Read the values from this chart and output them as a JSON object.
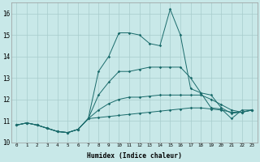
{
  "xlabel": "Humidex (Indice chaleur)",
  "xlim": [
    -0.5,
    23.5
  ],
  "ylim": [
    10,
    16.5
  ],
  "yticks": [
    10,
    11,
    12,
    13,
    14,
    15,
    16
  ],
  "bg_color": "#c8e8e8",
  "grid_color": "#a8cccc",
  "line_color": "#1a6b6b",
  "series": [
    [
      10.8,
      10.9,
      10.8,
      10.65,
      10.5,
      10.45,
      10.6,
      11.1,
      11.15,
      11.2,
      11.25,
      11.3,
      11.35,
      11.4,
      11.45,
      11.5,
      11.55,
      11.6,
      11.6,
      11.55,
      11.5,
      11.4,
      11.4,
      11.5
    ],
    [
      10.8,
      10.9,
      10.8,
      10.65,
      10.5,
      10.45,
      10.6,
      11.1,
      11.5,
      11.8,
      12.0,
      12.1,
      12.1,
      12.15,
      12.2,
      12.2,
      12.2,
      12.2,
      12.2,
      12.0,
      11.75,
      11.5,
      11.4,
      11.5
    ],
    [
      10.8,
      10.9,
      10.8,
      10.65,
      10.5,
      10.45,
      10.6,
      11.1,
      12.2,
      12.8,
      13.3,
      13.3,
      13.4,
      13.5,
      13.5,
      13.5,
      13.5,
      13.0,
      12.3,
      12.2,
      11.6,
      11.35,
      11.4,
      11.5
    ],
    [
      10.8,
      10.9,
      10.8,
      10.65,
      10.5,
      10.45,
      10.6,
      11.1,
      13.3,
      14.0,
      15.1,
      15.1,
      15.0,
      14.6,
      14.5,
      16.2,
      15.0,
      12.5,
      12.3,
      11.6,
      11.55,
      11.1,
      11.5,
      11.5
    ]
  ]
}
